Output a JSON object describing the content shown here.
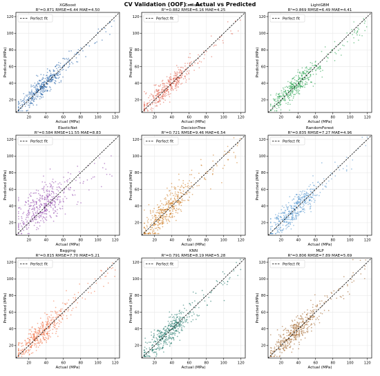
{
  "figure": {
    "title": "CV Validation (OOF) — Actual vs Predicted"
  },
  "chart_data": [
    {
      "type": "scatter",
      "name": "XGBoost",
      "metrics": "R²=0.871  RMSE=6.44  MAE=4.50",
      "color": "#1f5fa8",
      "r2": 0.871,
      "xlabel": "Actual (MPa)",
      "ylabel": "Predicted (MPa)",
      "xlim": [
        5,
        125
      ],
      "ylim": [
        5,
        125
      ],
      "xticks": [
        20,
        40,
        60,
        80,
        100,
        120
      ],
      "yticks": [
        20,
        40,
        60,
        80,
        100,
        120
      ],
      "legend": "Perfect fit",
      "legend_position": "top-left",
      "grid": true
    },
    {
      "type": "scatter",
      "name": "CatBoost",
      "metrics": "R²=0.882  RMSE=6.16  MAE=4.25",
      "color": "#e0604c",
      "r2": 0.882,
      "xlabel": "Actual (MPa)",
      "ylabel": "Predicted (MPa)",
      "xlim": [
        5,
        125
      ],
      "ylim": [
        5,
        125
      ],
      "xticks": [
        20,
        40,
        60,
        80,
        100,
        120
      ],
      "yticks": [
        20,
        40,
        60,
        80,
        100,
        120
      ],
      "legend": "Perfect fit",
      "legend_position": "top-left",
      "grid": true
    },
    {
      "type": "scatter",
      "name": "LightGBM",
      "metrics": "R²=0.869  RMSE=6.49  MAE=4.41",
      "color": "#22a04a",
      "r2": 0.869,
      "xlabel": "Actual (MPa)",
      "ylabel": "Predicted (MPa)",
      "xlim": [
        5,
        125
      ],
      "ylim": [
        5,
        125
      ],
      "xticks": [
        20,
        40,
        60,
        80,
        100,
        120
      ],
      "yticks": [
        20,
        40,
        60,
        80,
        100,
        120
      ],
      "legend": "Perfect fit",
      "legend_position": "top-left",
      "grid": true
    },
    {
      "type": "scatter",
      "name": "ElasticNet",
      "metrics": "R²=0.584  RMSE=11.55  MAE=8.83",
      "color": "#8a3aa8",
      "r2": 0.584,
      "xlabel": "Actual (MPa)",
      "ylabel": "Predicted (MPa)",
      "xlim": [
        5,
        125
      ],
      "ylim": [
        5,
        125
      ],
      "xticks": [
        20,
        40,
        60,
        80,
        100,
        120
      ],
      "yticks": [
        20,
        40,
        60,
        80,
        100,
        120
      ],
      "legend": "Perfect fit",
      "legend_position": "top-left",
      "grid": true
    },
    {
      "type": "scatter",
      "name": "DecisionTree",
      "metrics": "R²=0.721  RMSE=9.46  MAE=6.54",
      "color": "#c8700f",
      "r2": 0.721,
      "xlabel": "Actual (MPa)",
      "ylabel": "Predicted (MPa)",
      "xlim": [
        5,
        125
      ],
      "ylim": [
        5,
        125
      ],
      "xticks": [
        20,
        40,
        60,
        80,
        100,
        120
      ],
      "yticks": [
        20,
        40,
        60,
        80,
        100,
        120
      ],
      "legend": "Perfect fit",
      "legend_position": "top-left",
      "grid": true
    },
    {
      "type": "scatter",
      "name": "RandomForest",
      "metrics": "R²=0.835  RMSE=7.27  MAE=4.96",
      "color": "#4a90cc",
      "r2": 0.835,
      "xlabel": "Actual (MPa)",
      "ylabel": "Predicted (MPa)",
      "xlim": [
        5,
        125
      ],
      "ylim": [
        5,
        125
      ],
      "xticks": [
        20,
        40,
        60,
        80,
        100,
        120
      ],
      "yticks": [
        20,
        40,
        60,
        80,
        100,
        120
      ],
      "legend": "Perfect fit",
      "legend_position": "top-left",
      "grid": true
    },
    {
      "type": "scatter",
      "name": "Bagging",
      "metrics": "R²=0.815  RMSE=7.70  MAE=5.21",
      "color": "#f06a3a",
      "r2": 0.815,
      "xlabel": "Actual (MPa)",
      "ylabel": "Predicted (MPa)",
      "xlim": [
        5,
        125
      ],
      "ylim": [
        5,
        125
      ],
      "xticks": [
        20,
        40,
        60,
        80,
        100,
        120
      ],
      "yticks": [
        20,
        40,
        60,
        80,
        100,
        120
      ],
      "legend": "Perfect fit",
      "legend_position": "top-left",
      "grid": true
    },
    {
      "type": "scatter",
      "name": "KNN",
      "metrics": "R²=0.791  RMSE=8.19  MAE=5.28",
      "color": "#0f6e5e",
      "r2": 0.791,
      "xlabel": "Actual (MPa)",
      "ylabel": "Predicted (MPa)",
      "xlim": [
        5,
        125
      ],
      "ylim": [
        5,
        125
      ],
      "xticks": [
        20,
        40,
        60,
        80,
        100,
        120
      ],
      "yticks": [
        20,
        40,
        60,
        80,
        100,
        120
      ],
      "legend": "Perfect fit",
      "legend_position": "top-left",
      "grid": true
    },
    {
      "type": "scatter",
      "name": "MLP",
      "metrics": "R²=0.806  RMSE=7.89  MAE=5.69",
      "color": "#9a5a1c",
      "r2": 0.806,
      "xlabel": "Actual (MPa)",
      "ylabel": "Predicted (MPa)",
      "xlim": [
        5,
        125
      ],
      "ylim": [
        5,
        125
      ],
      "xticks": [
        20,
        40,
        60,
        80,
        100,
        120
      ],
      "yticks": [
        20,
        40,
        60,
        80,
        100,
        120
      ],
      "legend": "Perfect fit",
      "legend_position": "top-left",
      "grid": true
    }
  ]
}
